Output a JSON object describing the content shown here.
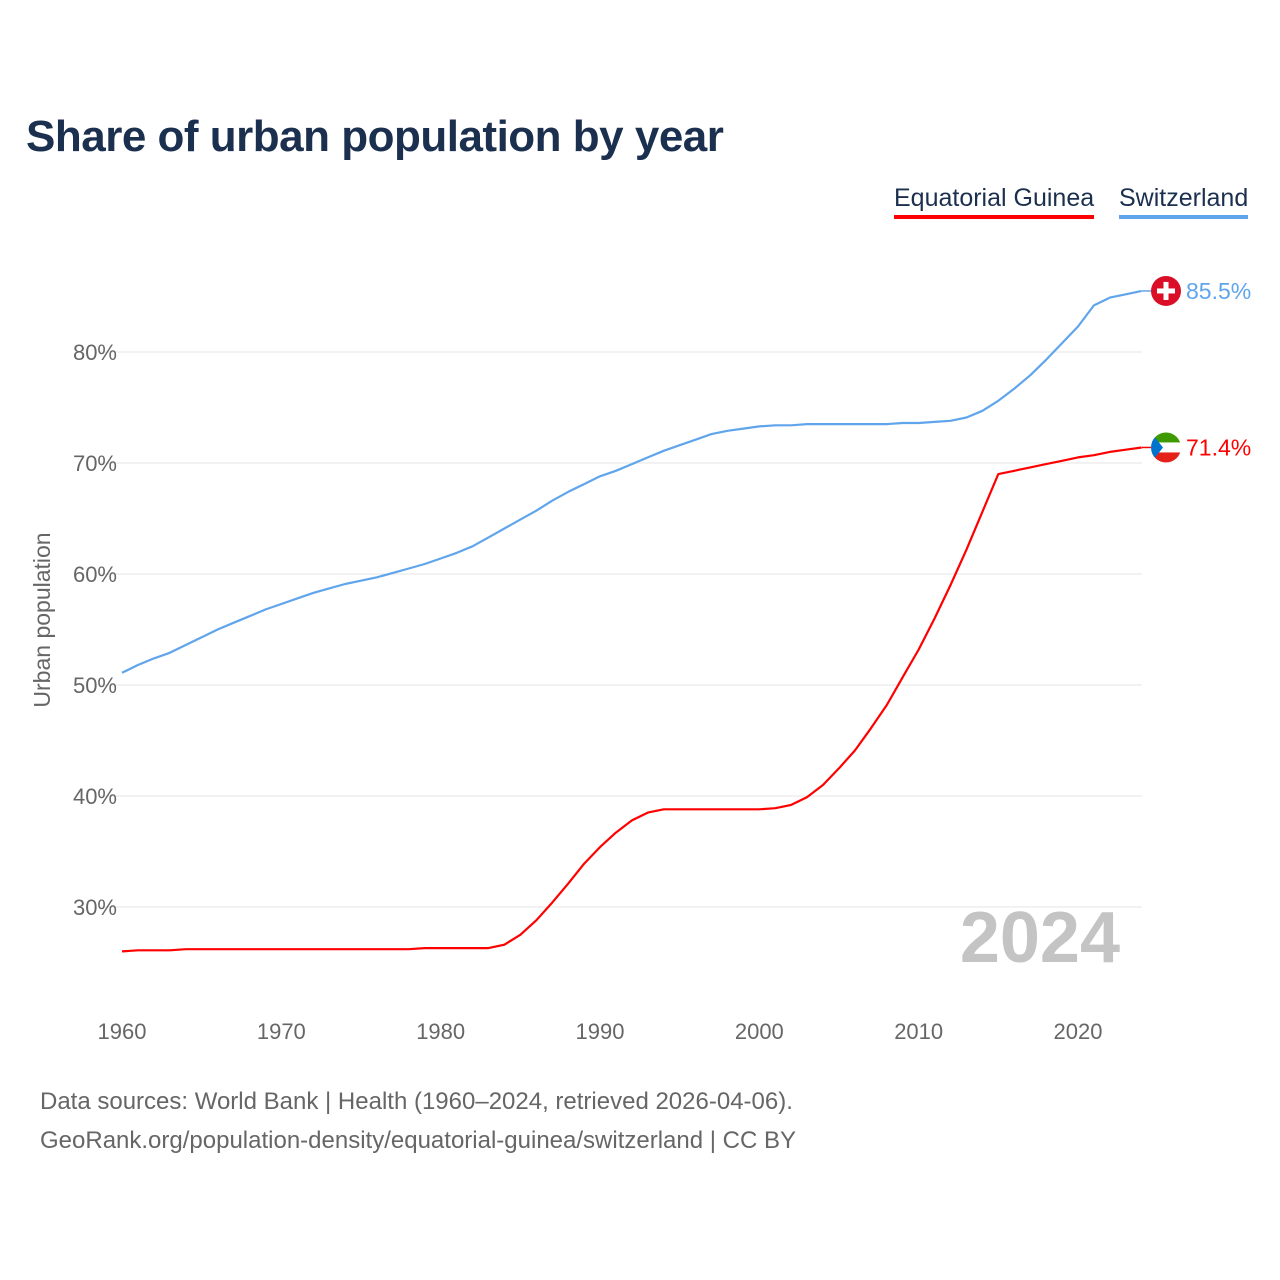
{
  "chart_data": {
    "type": "line",
    "title": "Share of urban population by year",
    "ylabel": "Urban population",
    "xlabel": "",
    "x_ticks": [
      "1960",
      "1970",
      "1980",
      "1990",
      "2000",
      "2010",
      "2020"
    ],
    "y_ticks": [
      "30%",
      "40%",
      "50%",
      "60%",
      "70%",
      "80%"
    ],
    "xlim": [
      1960,
      2024
    ],
    "ylim": [
      22,
      88
    ],
    "year_watermark": "2024",
    "x": [
      1960,
      1961,
      1962,
      1963,
      1964,
      1965,
      1966,
      1967,
      1968,
      1969,
      1970,
      1971,
      1972,
      1973,
      1974,
      1975,
      1976,
      1977,
      1978,
      1979,
      1980,
      1981,
      1982,
      1983,
      1984,
      1985,
      1986,
      1987,
      1988,
      1989,
      1990,
      1991,
      1992,
      1993,
      1994,
      1995,
      1996,
      1997,
      1998,
      1999,
      2000,
      2001,
      2002,
      2003,
      2004,
      2005,
      2006,
      2007,
      2008,
      2009,
      2010,
      2011,
      2012,
      2013,
      2014,
      2015,
      2016,
      2017,
      2018,
      2019,
      2020,
      2021,
      2022,
      2023,
      2024
    ],
    "series": [
      {
        "name": "Equatorial Guinea",
        "color": "#ff0000",
        "end_label": "71.4%",
        "flag": "equatorial-guinea",
        "values": [
          26.0,
          26.1,
          26.1,
          26.1,
          26.2,
          26.2,
          26.2,
          26.2,
          26.2,
          26.2,
          26.2,
          26.2,
          26.2,
          26.2,
          26.2,
          26.2,
          26.2,
          26.2,
          26.2,
          26.3,
          26.3,
          26.3,
          26.3,
          26.3,
          26.6,
          27.5,
          28.8,
          30.4,
          32.1,
          33.9,
          35.4,
          36.7,
          37.8,
          38.5,
          38.8,
          38.8,
          38.8,
          38.8,
          38.8,
          38.8,
          38.8,
          38.9,
          39.2,
          39.9,
          41.0,
          42.5,
          44.1,
          46.1,
          48.2,
          50.7,
          53.2,
          56.0,
          59.0,
          62.2,
          65.6,
          69.0,
          69.3,
          69.6,
          69.9,
          70.2,
          70.5,
          70.7,
          71.0,
          71.2,
          71.4
        ]
      },
      {
        "name": "Switzerland",
        "color": "#60a5ec",
        "end_label": "85.5%",
        "flag": "switzerland",
        "values": [
          51.1,
          51.8,
          52.4,
          52.9,
          53.6,
          54.3,
          55.0,
          55.6,
          56.2,
          56.8,
          57.3,
          57.8,
          58.3,
          58.7,
          59.1,
          59.4,
          59.7,
          60.1,
          60.5,
          60.9,
          61.4,
          61.9,
          62.5,
          63.3,
          64.1,
          64.9,
          65.7,
          66.6,
          67.4,
          68.1,
          68.8,
          69.3,
          69.9,
          70.5,
          71.1,
          71.6,
          72.1,
          72.6,
          72.9,
          73.1,
          73.3,
          73.4,
          73.4,
          73.5,
          73.5,
          73.5,
          73.5,
          73.5,
          73.5,
          73.6,
          73.6,
          73.7,
          73.8,
          74.1,
          74.7,
          75.6,
          76.7,
          77.9,
          79.3,
          80.8,
          82.3,
          84.2,
          84.9,
          85.2,
          85.5
        ]
      }
    ]
  },
  "footer": {
    "line1": "Data sources: World Bank | Health (1960–2024, retrieved 2026-04-06).",
    "line2": "GeoRank.org/population-density/equatorial-guinea/switzerland | CC BY"
  }
}
